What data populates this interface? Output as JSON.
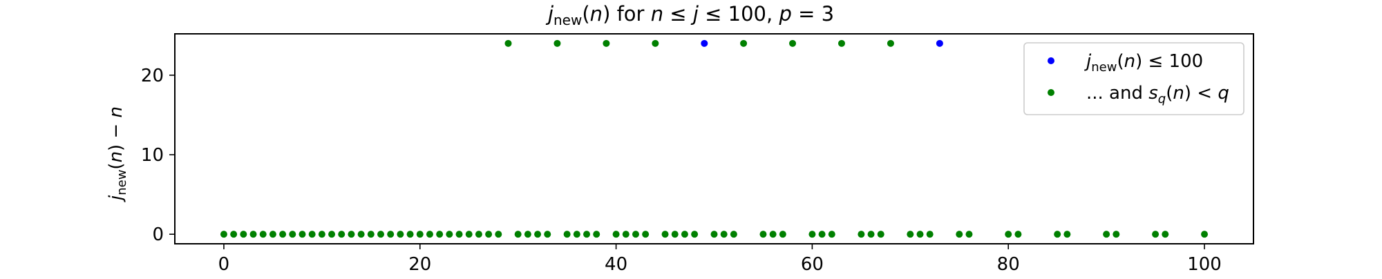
{
  "chart_data": {
    "type": "scatter",
    "title": {
      "j": "j",
      "sub": "new",
      "arg": "(",
      "n": "n",
      "rest1": ") for ",
      "n2": "n",
      "le1": " ≤ ",
      "j2": "j",
      "le2": " ≤ 100, ",
      "p": "p",
      "eq": " = 3"
    },
    "ylabel": {
      "j": "j",
      "sub": "new",
      "paren1": "(",
      "n": "n",
      "paren2": ") − ",
      "n2": "n"
    },
    "xlim": [
      -5,
      105
    ],
    "ylim": [
      -1.2,
      25.2
    ],
    "xticks": [
      0,
      20,
      40,
      60,
      80,
      100
    ],
    "yticks": [
      0,
      10,
      20
    ],
    "xtick_labels": [
      "0",
      "20",
      "40",
      "60",
      "80",
      "100"
    ],
    "ytick_labels": [
      "0",
      "10",
      "20"
    ],
    "grid": false,
    "legend_position": "top-right",
    "series": [
      {
        "name": "j_new(n) ≤ 100",
        "color": "#0000ff",
        "x": [
          49,
          73
        ],
        "y": [
          24,
          24
        ]
      },
      {
        "name": "... and s_q(n) < q",
        "color": "#008000",
        "x": [
          0,
          1,
          2,
          3,
          4,
          5,
          6,
          7,
          8,
          9,
          10,
          11,
          12,
          13,
          14,
          15,
          16,
          17,
          18,
          19,
          20,
          21,
          22,
          23,
          24,
          25,
          26,
          27,
          28,
          30,
          31,
          32,
          33,
          35,
          36,
          37,
          38,
          40,
          41,
          42,
          43,
          45,
          46,
          47,
          48,
          50,
          51,
          52,
          55,
          56,
          57,
          60,
          61,
          62,
          65,
          66,
          67,
          70,
          71,
          72,
          75,
          76,
          80,
          81,
          85,
          86,
          90,
          91,
          95,
          96,
          100,
          29,
          34,
          39,
          44,
          53,
          58,
          63,
          68
        ],
        "y": [
          0,
          0,
          0,
          0,
          0,
          0,
          0,
          0,
          0,
          0,
          0,
          0,
          0,
          0,
          0,
          0,
          0,
          0,
          0,
          0,
          0,
          0,
          0,
          0,
          0,
          0,
          0,
          0,
          0,
          0,
          0,
          0,
          0,
          0,
          0,
          0,
          0,
          0,
          0,
          0,
          0,
          0,
          0,
          0,
          0,
          0,
          0,
          0,
          0,
          0,
          0,
          0,
          0,
          0,
          0,
          0,
          0,
          0,
          0,
          0,
          0,
          0,
          0,
          0,
          0,
          0,
          0,
          0,
          0,
          0,
          0,
          24,
          24,
          24,
          24,
          24,
          24,
          24,
          24
        ]
      }
    ],
    "legend": [
      {
        "color": "#0000ff",
        "parts": {
          "j": "j",
          "sub": "new",
          "p1": "(",
          "n": "n",
          "p2": ") ≤ 100"
        }
      },
      {
        "color": "#008000",
        "parts": {
          "pre": "... and ",
          "s": "s",
          "sub": "q",
          "p1": "(",
          "n": "n",
          "p2": ") < ",
          "q": "q"
        }
      }
    ]
  }
}
